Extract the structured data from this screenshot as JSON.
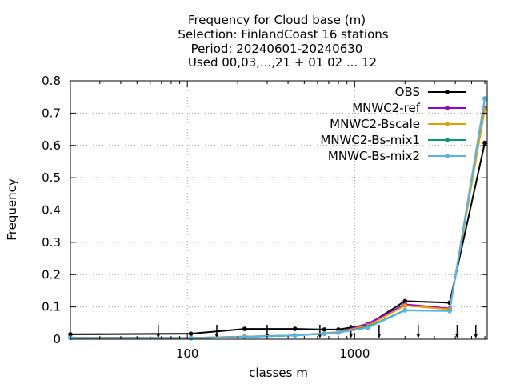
{
  "chart_data": {
    "type": "line",
    "title": [
      "Frequency  for Cloud base (m)",
      "Selection: FinlandCoast     16 stations",
      "Period: 20240601-20240630",
      "Used 00,03,...,21 + 01 02 ... 12"
    ],
    "xlabel": "classes m",
    "ylabel": "Frequency",
    "xscale": "log",
    "xlim": [
      20,
      6200
    ],
    "ylim": [
      0,
      0.8
    ],
    "xticks": [
      100,
      1000
    ],
    "xtick_labels": [
      "100",
      "1000"
    ],
    "yticks": [
      0,
      0.1,
      0.2,
      0.3,
      0.4,
      0.5,
      0.6,
      0.7,
      0.8
    ],
    "ytick_labels": [
      "0",
      "0.1",
      "0.2",
      "0.3",
      "0.4",
      "0.5",
      "0.6",
      "0.7",
      "0.8"
    ],
    "grid": true,
    "legend_position": "top-right",
    "x": [
      20,
      105,
      220,
      440,
      660,
      800,
      1200,
      2000,
      3700,
      6000
    ],
    "series": [
      {
        "name": "OBS",
        "color": "#000000",
        "values": [
          0.015,
          0.017,
          0.032,
          0.032,
          0.03,
          0.03,
          0.045,
          0.118,
          0.113,
          0.608
        ]
      },
      {
        "name": "MNWC2-ref",
        "color": "#9400d3",
        "values": [
          0.005,
          0.004,
          0.008,
          0.012,
          0.018,
          0.022,
          0.048,
          0.108,
          0.095,
          0.715
        ]
      },
      {
        "name": "MNWC2-Bscale",
        "color": "#e69f00",
        "values": [
          0.005,
          0.004,
          0.008,
          0.012,
          0.018,
          0.022,
          0.042,
          0.104,
          0.093,
          0.712
        ]
      },
      {
        "name": "MNWC2-Bs-mix1",
        "color": "#009e73",
        "values": [
          0.004,
          0.003,
          0.007,
          0.012,
          0.017,
          0.02,
          0.038,
          0.09,
          0.088,
          0.745
        ]
      },
      {
        "name": "MNWC-Bs-mix2",
        "color": "#56b4e9",
        "values": [
          0.004,
          0.003,
          0.007,
          0.012,
          0.017,
          0.02,
          0.036,
          0.089,
          0.087,
          0.743
        ]
      }
    ],
    "arrow_x": [
      67,
      150,
      300,
      620,
      950,
      1400,
      2400,
      4100,
      5300
    ]
  }
}
